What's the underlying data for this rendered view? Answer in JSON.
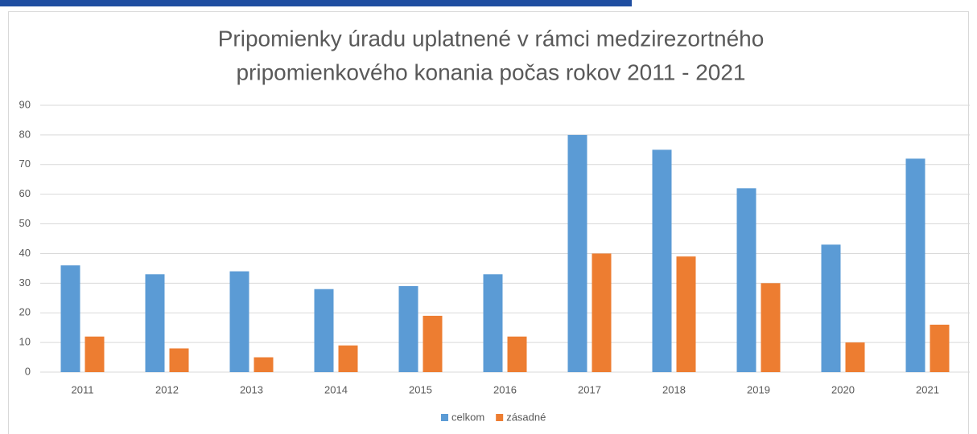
{
  "chart_data": {
    "type": "bar",
    "title": [
      "Pripomienky úradu uplatnené v rámci medzirezortného",
      "pripomienkového konania počas rokov 2011 - 2021"
    ],
    "categories": [
      "2011",
      "2012",
      "2013",
      "2014",
      "2015",
      "2016",
      "2017",
      "2018",
      "2019",
      "2020",
      "2021"
    ],
    "series": [
      {
        "name": "celkom",
        "color": "#5b9bd5",
        "values": [
          36,
          33,
          34,
          28,
          29,
          33,
          80,
          75,
          62,
          43,
          72
        ]
      },
      {
        "name": "zásadné",
        "color": "#ed7d31",
        "values": [
          12,
          8,
          5,
          9,
          19,
          12,
          40,
          39,
          30,
          10,
          16
        ]
      }
    ],
    "ylim": [
      0,
      90
    ],
    "yticks": [
      0,
      10,
      20,
      30,
      40,
      50,
      60,
      70,
      80,
      90
    ],
    "grid": true,
    "legend": "bottom"
  }
}
